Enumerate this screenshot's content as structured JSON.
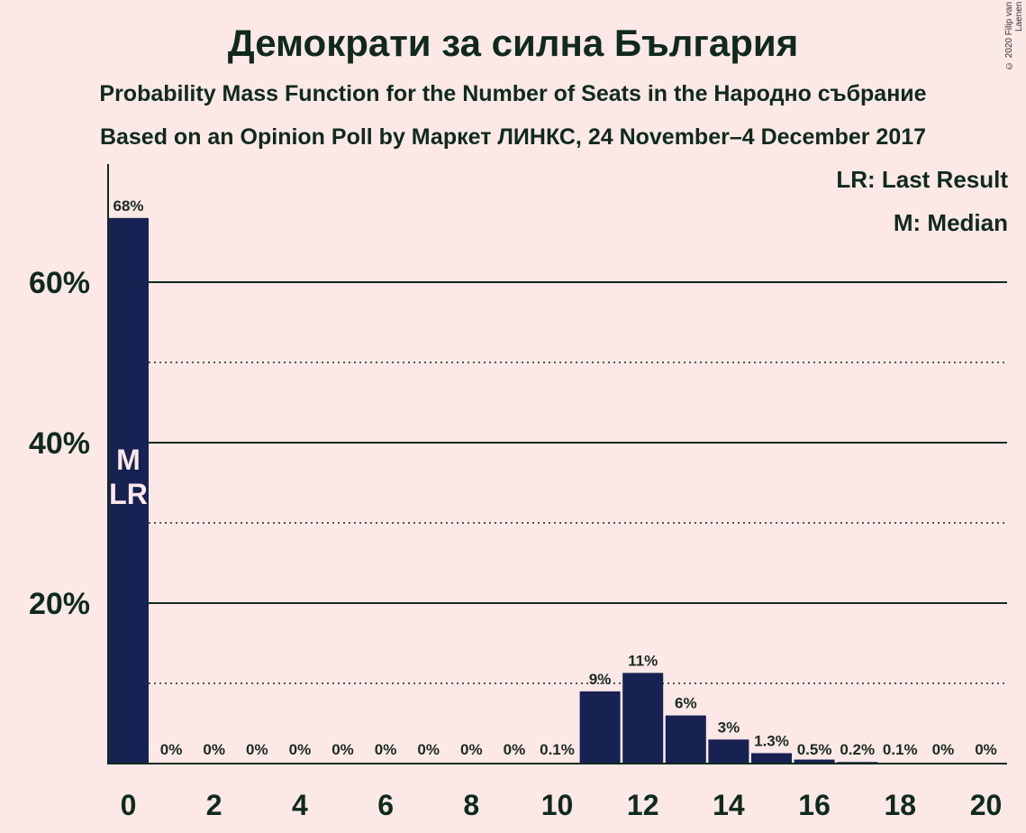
{
  "title": "Демократи за силна България",
  "subtitle": "Probability Mass Function for the Number of Seats in the Народно събрание",
  "subtitle2": "Based on an Opinion Poll by Маркет ЛИНКС, 24 November–4 December 2017",
  "copyright": "© 2020 Filip van Laenen",
  "legend": {
    "last_result": "LR: Last Result",
    "median": "M: Median"
  },
  "colors": {
    "bar": "#172152",
    "background": "#fde8e8",
    "text": "#0f2a1c"
  },
  "chart_data": {
    "type": "bar",
    "categories": [
      0,
      1,
      2,
      3,
      4,
      5,
      6,
      7,
      8,
      9,
      10,
      11,
      12,
      13,
      14,
      15,
      16,
      17,
      18,
      19,
      20
    ],
    "values": [
      68,
      0,
      0,
      0,
      0,
      0,
      0,
      0,
      0,
      0,
      0.1,
      9,
      11.3,
      6,
      3,
      1.3,
      0.5,
      0.2,
      0.1,
      0,
      0
    ],
    "labels": [
      "68%",
      "0%",
      "0%",
      "0%",
      "0%",
      "0%",
      "0%",
      "0%",
      "0%",
      "0%",
      "0.1%",
      "9%",
      "11%",
      "6%",
      "3%",
      "1.3%",
      "0.5%",
      "0.2%",
      "0.1%",
      "0%",
      "0%"
    ],
    "xticks": [
      "0",
      "2",
      "4",
      "6",
      "8",
      "10",
      "12",
      "14",
      "16",
      "18",
      "20"
    ],
    "yticks": [
      {
        "value": 20,
        "label": "20%"
      },
      {
        "value": 40,
        "label": "40%"
      },
      {
        "value": 60,
        "label": "60%"
      }
    ],
    "minor_gridlines": [
      10,
      30,
      50
    ],
    "ylim": [
      0,
      74
    ],
    "median_seat": 0,
    "last_result_seat": 0,
    "median_marker": "M",
    "last_result_marker": "LR",
    "xlabel": "",
    "ylabel": "",
    "grid": true
  }
}
